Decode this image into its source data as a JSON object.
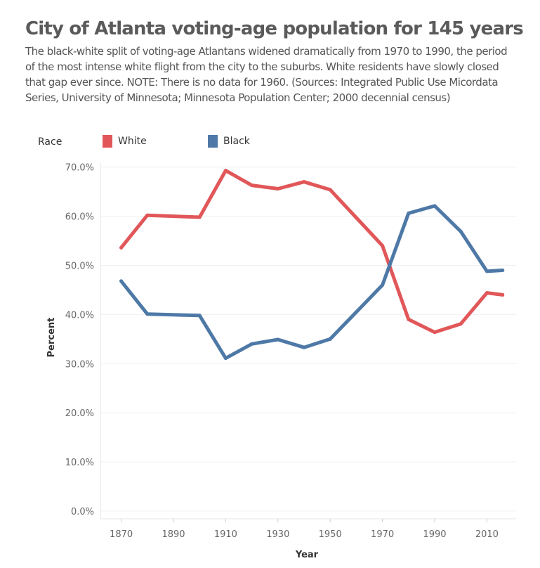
{
  "title": "City of Atlanta voting-age population for 145 years",
  "subtitle": "The black-white split of voting-age Atlantans widened dramatically from 1970 to 1990, the period of the most intense white flight from the city to the suburbs. White residents have slowly closed that gap ever since. NOTE: There is no data for 1960. (Sources: Integrated Public Use Micordata Series, University of Minnesota; Minnesota Population Center; 2000 decennial census)",
  "legend": {
    "title": "Race",
    "items": [
      {
        "label": "White",
        "color": "#e15759"
      },
      {
        "label": "Black",
        "color": "#4e79a7"
      }
    ]
  },
  "chart_data": {
    "type": "line",
    "title": "City of Atlanta voting-age population for 145 years",
    "xlabel": "Year",
    "ylabel": "Percent",
    "x": [
      1870,
      1880,
      1900,
      1910,
      1920,
      1930,
      1940,
      1950,
      1970,
      1980,
      1990,
      2000,
      2010,
      2016
    ],
    "series": [
      {
        "name": "White",
        "color": "#e15759",
        "values": [
          53.6,
          60.2,
          59.8,
          69.3,
          66.3,
          65.6,
          67.0,
          65.4,
          54.0,
          39.0,
          36.4,
          38.1,
          44.4,
          44.0
        ]
      },
      {
        "name": "Black",
        "color": "#4e79a7",
        "values": [
          46.8,
          40.1,
          39.8,
          31.1,
          34.0,
          34.9,
          33.3,
          35.0,
          46.0,
          60.6,
          62.1,
          56.9,
          48.8,
          49.0
        ]
      }
    ],
    "xticks": [
      "1870",
      "1890",
      "1910",
      "1930",
      "1950",
      "1970",
      "1990",
      "2010"
    ],
    "yticks": [
      "0.0%",
      "10.0%",
      "20.0%",
      "30.0%",
      "40.0%",
      "50.0%",
      "60.0%",
      "70.0%"
    ],
    "ylim": [
      0,
      73
    ],
    "xlim": [
      1862,
      2022
    ],
    "grid": true,
    "legend_position": "top-left"
  }
}
